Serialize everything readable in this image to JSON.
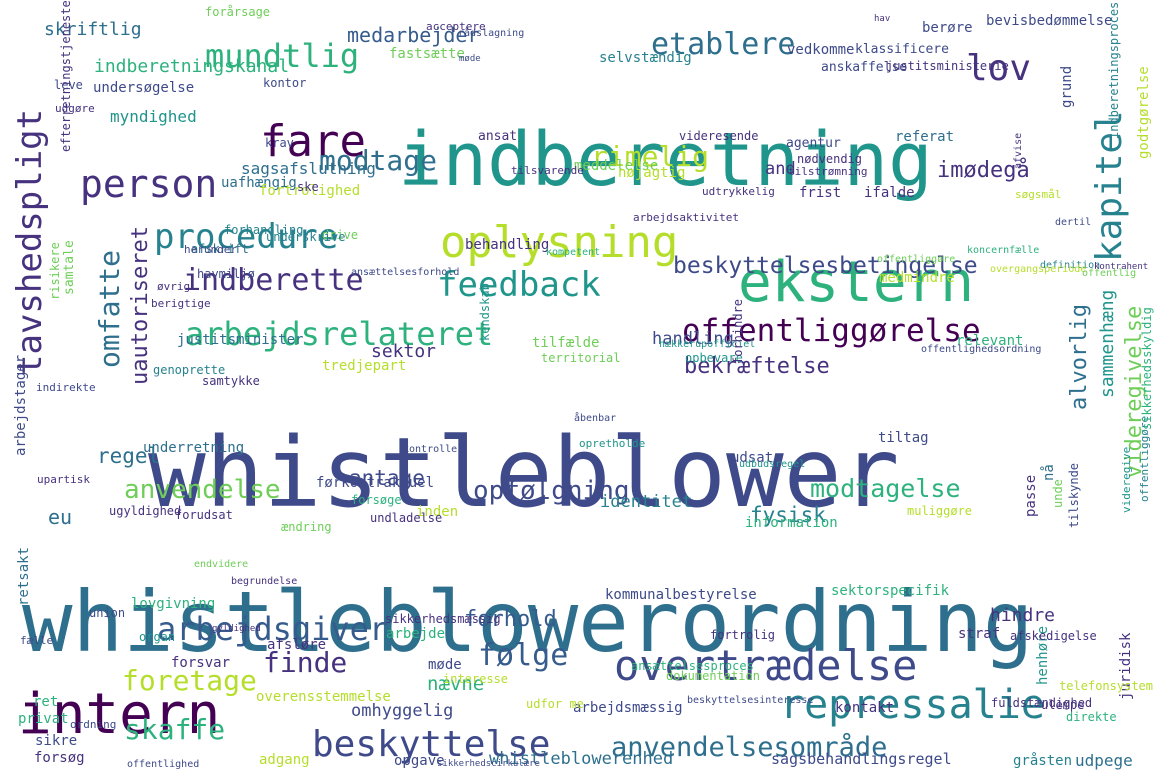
{
  "palette": {
    "deep_purple": "#440154",
    "purple": "#46327e",
    "indigo": "#3e4a89",
    "blue": "#365c8d",
    "steel": "#2e6f8e",
    "teal": "#26828e",
    "sea": "#1f958b",
    "green": "#2db27d",
    "lime": "#6ece58",
    "yellowgreen": "#b5de2b",
    "yellow": "#fde725"
  },
  "words": [
    {
      "text": "whistleblower",
      "color": "indigo"
    },
    {
      "text": "whistleblowerordning",
      "color": "steel"
    },
    {
      "text": "indberetning",
      "color": "sea"
    },
    {
      "text": "ekstern",
      "color": "green"
    },
    {
      "text": "oplysning",
      "color": "yellowgreen"
    },
    {
      "text": "overtrædelse",
      "color": "indigo"
    },
    {
      "text": "intern",
      "color": "deep_purple"
    },
    {
      "text": "repressalie",
      "color": "teal"
    },
    {
      "text": "beskyttelse",
      "color": "indigo"
    },
    {
      "text": "arbejdsrelateret",
      "color": "green"
    },
    {
      "text": "arbejdsgiver",
      "color": "blue"
    },
    {
      "text": "offentliggørelse",
      "color": "deep_purple"
    },
    {
      "text": "fare",
      "color": "deep_purple"
    },
    {
      "text": "person",
      "color": "purple"
    },
    {
      "text": "procedure",
      "color": "teal"
    },
    {
      "text": "feedback",
      "color": "sea"
    },
    {
      "text": "indberette",
      "color": "purple"
    },
    {
      "text": "tavshedspligt",
      "color": "purple"
    },
    {
      "text": "kapitel",
      "color": "teal"
    },
    {
      "text": "mundtlig",
      "color": "green"
    },
    {
      "text": "etablere",
      "color": "steel"
    },
    {
      "text": "lov",
      "color": "purple"
    },
    {
      "text": "modtage",
      "color": "steel"
    },
    {
      "text": "rimelig",
      "color": "yellowgreen"
    },
    {
      "text": "omfatte",
      "color": "steel"
    },
    {
      "text": "uautoriseret",
      "color": "purple"
    },
    {
      "text": "opfølgning",
      "color": "indigo"
    },
    {
      "text": "modtagelse",
      "color": "green"
    },
    {
      "text": "anvendelse",
      "color": "lime"
    },
    {
      "text": "følge",
      "color": "blue"
    },
    {
      "text": "finde",
      "color": "purple"
    },
    {
      "text": "foretage",
      "color": "yellowgreen"
    },
    {
      "text": "skaffe",
      "color": "green"
    },
    {
      "text": "anvendelsesområde",
      "color": "steel"
    },
    {
      "text": "beskyttelsesbetingelse",
      "color": "indigo"
    },
    {
      "text": "imødegå",
      "color": "purple"
    },
    {
      "text": "bekræftelse",
      "color": "purple"
    },
    {
      "text": "videregivelse",
      "color": "lime"
    },
    {
      "text": "alvorlig",
      "color": "steel"
    },
    {
      "text": "sammenhæng",
      "color": "sea"
    },
    {
      "text": "fysisk",
      "color": "teal"
    },
    {
      "text": "regel",
      "color": "steel"
    },
    {
      "text": "eu",
      "color": "steel"
    },
    {
      "text": "antage",
      "color": "indigo"
    },
    {
      "text": "forhold",
      "color": "blue"
    },
    {
      "text": "medarbejder",
      "color": "blue"
    },
    {
      "text": "skriftlig",
      "color": "steel"
    },
    {
      "text": "indberetningskanal",
      "color": "green"
    },
    {
      "text": "myndighed",
      "color": "sea"
    },
    {
      "text": "sagsafslutning",
      "color": "steel"
    },
    {
      "text": "and",
      "color": "purple"
    },
    {
      "text": "sektor",
      "color": "purple"
    },
    {
      "text": "handling",
      "color": "indigo"
    },
    {
      "text": "identitet",
      "color": "teal"
    },
    {
      "text": "nævne",
      "color": "green"
    },
    {
      "text": "omhyggelig",
      "color": "indigo"
    },
    {
      "text": "hindre",
      "color": "purple"
    },
    {
      "text": "whistleblowerenhed",
      "color": "steel"
    },
    {
      "text": "sagsbehandlingsregel",
      "color": "indigo"
    },
    {
      "text": "udpege",
      "color": "steel"
    },
    {
      "text": "justitsminister",
      "color": "steel"
    },
    {
      "text": "tilfælde",
      "color": "lime"
    },
    {
      "text": "relevant",
      "color": "green"
    },
    {
      "text": "tredjepart",
      "color": "yellowgreen"
    },
    {
      "text": "udsat",
      "color": "indigo"
    },
    {
      "text": "tiltag",
      "color": "indigo"
    },
    {
      "text": "kommunalbestyrelse",
      "color": "indigo"
    },
    {
      "text": "sektorspecifik",
      "color": "green"
    },
    {
      "text": "lovgivning",
      "color": "green"
    },
    {
      "text": "forsvar",
      "color": "purple"
    },
    {
      "text": "afsløre",
      "color": "purple"
    },
    {
      "text": "arbejde",
      "color": "green"
    },
    {
      "text": "straf",
      "color": "purple"
    },
    {
      "text": "møde",
      "color": "indigo"
    },
    {
      "text": "ret",
      "color": "green"
    },
    {
      "text": "overensstemmelse",
      "color": "yellowgreen"
    },
    {
      "text": "arbejdsmæssig",
      "color": "indigo"
    },
    {
      "text": "kontakt",
      "color": "purple"
    },
    {
      "text": "henhøre",
      "color": "sea"
    },
    {
      "text": "juridisk",
      "color": "purple"
    },
    {
      "text": "sikre",
      "color": "indigo"
    },
    {
      "text": "forsøg",
      "color": "purple"
    },
    {
      "text": "adgang",
      "color": "yellowgreen"
    },
    {
      "text": "opgave",
      "color": "indigo"
    },
    {
      "text": "privat",
      "color": "green"
    },
    {
      "text": "retsakt",
      "color": "steel"
    },
    {
      "text": "bevisbedømmelse",
      "color": "indigo"
    },
    {
      "text": "berøre",
      "color": "indigo"
    },
    {
      "text": "vedkomme",
      "color": "indigo"
    },
    {
      "text": "klassificere",
      "color": "indigo"
    },
    {
      "text": "fastsætte",
      "color": "lime"
    },
    {
      "text": "selvstændig",
      "color": "teal"
    },
    {
      "text": "anskaffelse",
      "color": "indigo"
    },
    {
      "text": "justitsministerie",
      "color": "purple"
    },
    {
      "text": "undersøgelse",
      "color": "indigo"
    },
    {
      "text": "kontor",
      "color": "indigo"
    },
    {
      "text": "grund",
      "color": "indigo"
    },
    {
      "text": "ansat",
      "color": "purple"
    },
    {
      "text": "referat",
      "color": "steel"
    },
    {
      "text": "krav",
      "color": "indigo"
    },
    {
      "text": "agentur",
      "color": "indigo"
    },
    {
      "text": "meddelelse",
      "color": "lime"
    },
    {
      "text": "nøjagtig",
      "color": "yellowgreen"
    },
    {
      "text": "uafhængig",
      "color": "steel"
    },
    {
      "text": "fortrolighed",
      "color": "yellowgreen"
    },
    {
      "text": "frist",
      "color": "purple"
    },
    {
      "text": "ifalde",
      "color": "purple"
    },
    {
      "text": "afskrift",
      "color": "steel"
    },
    {
      "text": "behandling",
      "color": "purple"
    },
    {
      "text": "medmindre",
      "color": "yellowgreen"
    },
    {
      "text": "godtgørelse",
      "color": "yellowgreen"
    },
    {
      "text": "efterretningstjeneste",
      "color": "purple"
    },
    {
      "text": "risikere",
      "color": "lime"
    },
    {
      "text": "samtale",
      "color": "lime"
    },
    {
      "text": "arbejdstager",
      "color": "indigo"
    },
    {
      "text": "underretning",
      "color": "steel"
    },
    {
      "text": "førkontraktuel",
      "color": "indigo"
    },
    {
      "text": "forudsat",
      "color": "purple"
    },
    {
      "text": "inden",
      "color": "yellowgreen"
    },
    {
      "text": "information",
      "color": "green"
    },
    {
      "text": "passe",
      "color": "purple"
    },
    {
      "text": "nå",
      "color": "steel"
    },
    {
      "text": "genoprette",
      "color": "teal"
    },
    {
      "text": "samtykke",
      "color": "purple"
    },
    {
      "text": "territorial",
      "color": "lime"
    },
    {
      "text": "opbevare",
      "color": "sea"
    },
    {
      "text": "udfor me",
      "color": "yellowgreen"
    },
    {
      "text": "interesse",
      "color": "yellowgreen"
    },
    {
      "text": "dokumentation",
      "color": "lime"
    },
    {
      "text": "ansættelsesproces",
      "color": "green"
    },
    {
      "text": "fortrolig",
      "color": "purple"
    },
    {
      "text": "sikkerhedsmæssig",
      "color": "purple"
    },
    {
      "text": "afskedigelse",
      "color": "purple"
    },
    {
      "text": "telefonsystem",
      "color": "yellowgreen"
    },
    {
      "text": "indberetningsproces",
      "color": "teal"
    },
    {
      "text": "rådslagning",
      "color": "indigo"
    },
    {
      "text": "havmiljø",
      "color": "indigo"
    },
    {
      "text": "ansættelsesforhold",
      "color": "indigo"
    },
    {
      "text": "kompetent",
      "color": "green"
    },
    {
      "text": "koncernfælle",
      "color": "green"
    },
    {
      "text": "offentliggøre",
      "color": "lime"
    },
    {
      "text": "definition",
      "color": "teal"
    },
    {
      "text": "nødvendig",
      "color": "purple"
    },
    {
      "text": "tilsvarende",
      "color": "purple"
    },
    {
      "text": "udtrykkelig",
      "color": "purple"
    },
    {
      "text": "søgsmål",
      "color": "yellowgreen"
    },
    {
      "text": "dertil",
      "color": "indigo"
    },
    {
      "text": "arbejdsaktivitet",
      "color": "purple"
    },
    {
      "text": "forhandling",
      "color": "teal"
    },
    {
      "text": "drive",
      "color": "lime"
    },
    {
      "text": "underskrive",
      "color": "teal"
    },
    {
      "text": "herunder",
      "color": "indigo"
    },
    {
      "text": "ske",
      "color": "purple"
    },
    {
      "text": "videresende",
      "color": "purple"
    },
    {
      "text": "tilstrømning",
      "color": "purple"
    },
    {
      "text": "afvise",
      "color": "purple"
    },
    {
      "text": "forårsage",
      "color": "lime"
    },
    {
      "text": "acceptere",
      "color": "purple"
    },
    {
      "text": "hav",
      "color": "purple"
    },
    {
      "text": "møde",
      "color": "indigo"
    },
    {
      "text": "leve",
      "color": "indigo"
    },
    {
      "text": "udgøre",
      "color": "purple"
    },
    {
      "text": "øvrig",
      "color": "purple"
    },
    {
      "text": "berigtige",
      "color": "purple"
    },
    {
      "text": "indirekte",
      "color": "indigo"
    },
    {
      "text": "upartisk",
      "color": "purple"
    },
    {
      "text": "ugyldighed",
      "color": "purple"
    },
    {
      "text": "ændring",
      "color": "lime"
    },
    {
      "text": "forsøge",
      "color": "green"
    },
    {
      "text": "undladelse",
      "color": "purple"
    },
    {
      "text": "muliggøre",
      "color": "yellowgreen"
    },
    {
      "text": "endvidere",
      "color": "lime"
    },
    {
      "text": "begrundelse",
      "color": "purple"
    },
    {
      "text": "union",
      "color": "indigo"
    },
    {
      "text": "organ",
      "color": "sea"
    },
    {
      "text": "fælle",
      "color": "indigo"
    },
    {
      "text": "gyldighed",
      "color": "purple"
    },
    {
      "text": "beskyttelsesinteresse",
      "color": "indigo"
    },
    {
      "text": "fuldstændighed",
      "color": "purple"
    },
    {
      "text": "ulempe",
      "color": "purple"
    },
    {
      "text": "direkte",
      "color": "green"
    },
    {
      "text": "ordning",
      "color": "indigo"
    },
    {
      "text": "offentlighed",
      "color": "indigo"
    },
    {
      "text": "sikkerhedscirkulære",
      "color": "indigo"
    },
    {
      "text": "gråsten",
      "color": "teal"
    },
    {
      "text": "åbenbar",
      "color": "indigo"
    },
    {
      "text": "kendskab",
      "color": "sea"
    },
    {
      "text": "hækkerupofficiel",
      "color": "sea"
    },
    {
      "text": "forhindre",
      "color": "purple"
    },
    {
      "text": "opretholde",
      "color": "sea"
    },
    {
      "text": "kontroller",
      "color": "indigo"
    },
    {
      "text": "udbudsregel",
      "color": "sea"
    },
    {
      "text": "unde",
      "color": "lime"
    },
    {
      "text": "videregive",
      "color": "sea"
    },
    {
      "text": "offentliggøre",
      "color": "teal"
    },
    {
      "text": "tilskynde",
      "color": "indigo"
    },
    {
      "text": "sikkerhedsskyldig",
      "color": "green"
    },
    {
      "text": "overgangsperiode",
      "color": "yellowgreen"
    },
    {
      "text": "offentlighedsordning",
      "color": "indigo"
    },
    {
      "text": "offentlig",
      "color": "lime"
    },
    {
      "text": "kontrahent",
      "color": "purple"
    },
    {
      "text": "lovovertrædelse",
      "color": "purple"
    },
    {
      "text": "ensformig",
      "color": "indigo"
    },
    {
      "text": "åbenhed",
      "color": "purple"
    }
  ]
}
